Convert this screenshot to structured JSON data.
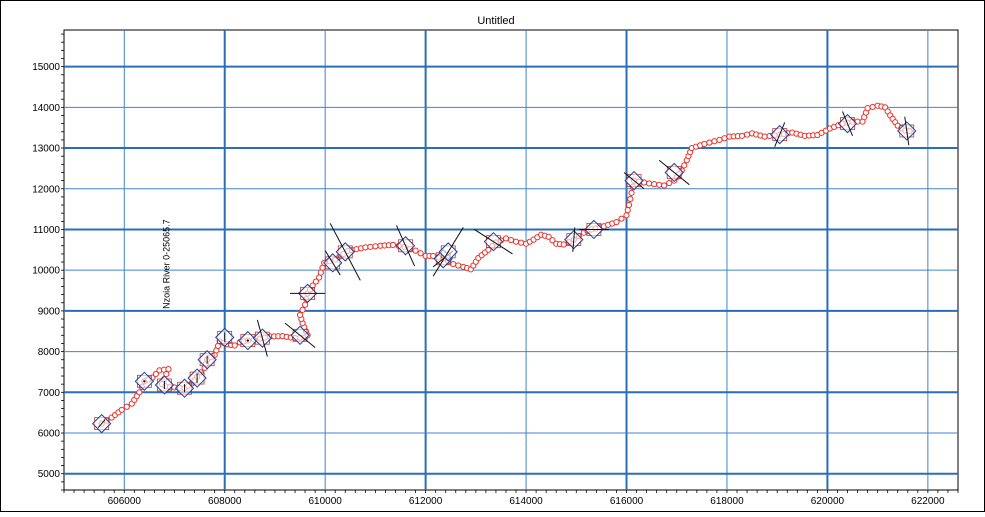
{
  "window": {
    "title": "Untitled"
  },
  "chart_data": {
    "type": "line",
    "title": "",
    "xlabel": "",
    "ylabel": "",
    "xlim": [
      604800,
      622600
    ],
    "ylim": [
      4600,
      15900
    ],
    "x_ticks": [
      606000,
      608000,
      610000,
      612000,
      614000,
      616000,
      618000,
      620000,
      622000
    ],
    "y_ticks": [
      5000,
      6000,
      7000,
      8000,
      9000,
      10000,
      11000,
      12000,
      13000,
      14000,
      15000
    ],
    "grid": true,
    "annotations": [
      {
        "text": "Nzoia River 0-25065.7",
        "x": 606900,
        "y": 10150,
        "rotation": -90
      }
    ],
    "series": [
      {
        "name": "",
        "color": "#e8342a",
        "marker": "circle",
        "points": [
          [
            605550,
            6230
          ],
          [
            605750,
            6380
          ],
          [
            605950,
            6570
          ],
          [
            606150,
            6720
          ],
          [
            606300,
            7000
          ],
          [
            606400,
            7270
          ],
          [
            606560,
            7360
          ],
          [
            606700,
            7540
          ],
          [
            606880,
            7570
          ],
          [
            606750,
            7200
          ],
          [
            606820,
            7150
          ],
          [
            607000,
            7120
          ],
          [
            607200,
            7100
          ],
          [
            607350,
            7220
          ],
          [
            607450,
            7380
          ],
          [
            607600,
            7600
          ],
          [
            607650,
            7800
          ],
          [
            607800,
            7920
          ],
          [
            607900,
            8250
          ],
          [
            608050,
            8180
          ],
          [
            608200,
            8150
          ],
          [
            608300,
            8230
          ],
          [
            608460,
            8270
          ],
          [
            608700,
            8320
          ],
          [
            608900,
            8370
          ],
          [
            609150,
            8380
          ],
          [
            609400,
            8330
          ],
          [
            609600,
            8350
          ],
          [
            609650,
            8400
          ],
          [
            609550,
            8700
          ],
          [
            609500,
            8900
          ],
          [
            609600,
            9150
          ],
          [
            609650,
            9430
          ],
          [
            609750,
            9620
          ],
          [
            609880,
            9820
          ],
          [
            609980,
            10180
          ],
          [
            610200,
            10260
          ],
          [
            610450,
            10470
          ],
          [
            610800,
            10560
          ],
          [
            611100,
            10600
          ],
          [
            611350,
            10620
          ],
          [
            611580,
            10570
          ],
          [
            611800,
            10480
          ],
          [
            612000,
            10350
          ],
          [
            612150,
            10350
          ],
          [
            612350,
            10280
          ],
          [
            612550,
            10150
          ],
          [
            612750,
            10080
          ],
          [
            612900,
            10020
          ],
          [
            613050,
            10300
          ],
          [
            613250,
            10500
          ],
          [
            613400,
            10680
          ],
          [
            613600,
            10780
          ],
          [
            613800,
            10700
          ],
          [
            614000,
            10650
          ],
          [
            614150,
            10750
          ],
          [
            614300,
            10870
          ],
          [
            614450,
            10820
          ],
          [
            614600,
            10650
          ],
          [
            614750,
            10630
          ],
          [
            614950,
            10750
          ],
          [
            615150,
            10920
          ],
          [
            615300,
            11000
          ],
          [
            615550,
            11080
          ],
          [
            615800,
            11180
          ],
          [
            616000,
            11350
          ],
          [
            616050,
            11600
          ],
          [
            616100,
            11900
          ],
          [
            616150,
            12200
          ],
          [
            616450,
            12130
          ],
          [
            616750,
            12080
          ],
          [
            616950,
            12200
          ],
          [
            617100,
            12450
          ],
          [
            617200,
            12700
          ],
          [
            617300,
            13000
          ],
          [
            617550,
            13100
          ],
          [
            617850,
            13200
          ],
          [
            618050,
            13280
          ],
          [
            618300,
            13300
          ],
          [
            618500,
            13360
          ],
          [
            618750,
            13280
          ],
          [
            619050,
            13330
          ],
          [
            619300,
            13380
          ],
          [
            619550,
            13300
          ],
          [
            619800,
            13320
          ],
          [
            620050,
            13480
          ],
          [
            620300,
            13600
          ],
          [
            620500,
            13650
          ],
          [
            620700,
            13650
          ],
          [
            620800,
            13980
          ],
          [
            621000,
            14040
          ],
          [
            621150,
            14000
          ],
          [
            621250,
            13800
          ],
          [
            621400,
            13550
          ],
          [
            621550,
            13430
          ],
          [
            621720,
            13410
          ]
        ]
      }
    ],
    "cross_sections": [
      {
        "x": 605550,
        "y": 6230,
        "dx": 70,
        "dy": 100
      },
      {
        "x": 606400,
        "y": 7270,
        "dx": 0,
        "dy": 0
      },
      {
        "x": 606800,
        "y": 7180,
        "dx": 0,
        "dy": 100
      },
      {
        "x": 607200,
        "y": 7100,
        "dx": 0,
        "dy": 100
      },
      {
        "x": 607450,
        "y": 7350,
        "dx": 0,
        "dy": 120
      },
      {
        "x": 607650,
        "y": 7800,
        "dx": 0,
        "dy": 100
      },
      {
        "x": 608000,
        "y": 8350,
        "dx": 0,
        "dy": 120
      },
      {
        "x": 608460,
        "y": 8270,
        "dx": 0,
        "dy": 0
      },
      {
        "x": 608750,
        "y": 8330,
        "dx": -100,
        "dy": 450
      },
      {
        "x": 609500,
        "y": 8400,
        "dx": -300,
        "dy": 300
      },
      {
        "x": 609650,
        "y": 9430,
        "dx": -350,
        "dy": 0
      },
      {
        "x": 610150,
        "y": 10180,
        "dx": -150,
        "dy": 300
      },
      {
        "x": 610400,
        "y": 10450,
        "dx": 300,
        "dy": -700
      },
      {
        "x": 611600,
        "y": 10600,
        "dx": -180,
        "dy": 500
      },
      {
        "x": 612350,
        "y": 10280,
        "dx": -200,
        "dy": -200
      },
      {
        "x": 612450,
        "y": 10450,
        "dx": 300,
        "dy": 600
      },
      {
        "x": 613350,
        "y": 10700,
        "dx": 380,
        "dy": -300
      },
      {
        "x": 614950,
        "y": 10750,
        "dx": 20,
        "dy": 300
      },
      {
        "x": 615350,
        "y": 11000,
        "dx": 300,
        "dy": 0
      },
      {
        "x": 616150,
        "y": 12200,
        "dx": 200,
        "dy": -200
      },
      {
        "x": 616950,
        "y": 12400,
        "dx": -300,
        "dy": 300
      },
      {
        "x": 619050,
        "y": 13330,
        "dx": 100,
        "dy": 300
      },
      {
        "x": 620400,
        "y": 13600,
        "dx": 100,
        "dy": -300
      },
      {
        "x": 621580,
        "y": 13420,
        "dx": -40,
        "dy": 350
      }
    ]
  }
}
